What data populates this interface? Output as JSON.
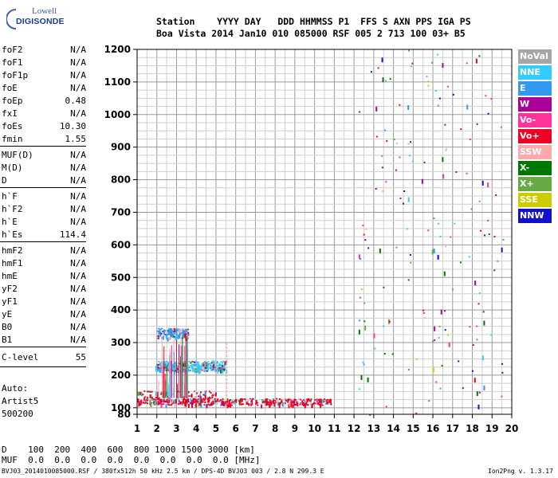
{
  "logo": {
    "line1": "Lowell",
    "line2": "DIGISONDE"
  },
  "header": {
    "row1": "Station    YYYY DAY   DDD HHMMSS P1  FFS S AXN PPS IGA PS",
    "row2": "Boa Vista 2014 Jan10 010 085000 RSF 005 2 713 100 03+ B5"
  },
  "params": {
    "group1": [
      {
        "name": "foF2",
        "value": "N/A"
      },
      {
        "name": "foF1",
        "value": "N/A"
      },
      {
        "name": "foF1p",
        "value": "N/A"
      },
      {
        "name": "foE",
        "value": "N/A"
      },
      {
        "name": "foEp",
        "value": "0.48"
      },
      {
        "name": "fxI",
        "value": "N/A"
      },
      {
        "name": "foEs",
        "value": "10.30"
      },
      {
        "name": "fmin",
        "value": "1.55"
      }
    ],
    "group2": [
      {
        "name": "MUF(D)",
        "value": "N/A"
      },
      {
        "name": "M(D)",
        "value": "N/A"
      },
      {
        "name": "D",
        "value": "N/A"
      }
    ],
    "group3": [
      {
        "name": "h`F",
        "value": "N/A"
      },
      {
        "name": "h`F2",
        "value": "N/A"
      },
      {
        "name": "h`E",
        "value": "N/A"
      },
      {
        "name": "h`Es",
        "value": "114.4"
      }
    ],
    "group4": [
      {
        "name": "hmF2",
        "value": "N/A"
      },
      {
        "name": "hmF1",
        "value": "N/A"
      },
      {
        "name": "hmE",
        "value": "N/A"
      },
      {
        "name": "yF2",
        "value": "N/A"
      },
      {
        "name": "yF1",
        "value": "N/A"
      },
      {
        "name": "yE",
        "value": "N/A"
      },
      {
        "name": "B0",
        "value": "N/A"
      },
      {
        "name": "B1",
        "value": "N/A"
      }
    ],
    "clevel": {
      "name": "C-level",
      "value": "55"
    }
  },
  "auto": {
    "line1": "Auto:",
    "line2": "Artist5",
    "line3": "500200"
  },
  "legend": [
    {
      "label": "NoVal",
      "color": "#a6a6a6"
    },
    {
      "label": "NNE",
      "color": "#33ccff"
    },
    {
      "label": "E",
      "color": "#3399ee"
    },
    {
      "label": "W",
      "color": "#aa0099"
    },
    {
      "label": "Vo-",
      "color": "#ff3399"
    },
    {
      "label": "Vo+",
      "color": "#ee0022"
    },
    {
      "label": "SSW",
      "color": "#ffaaaa"
    },
    {
      "label": "X-",
      "color": "#007700"
    },
    {
      "label": "X+",
      "color": "#66aa44"
    },
    {
      "label": "SSE",
      "color": "#cccc00"
    },
    {
      "label": "NNW",
      "color": "#1111cc"
    }
  ],
  "bottom": {
    "dist_row": "D    100  200  400  600  800 1000 1500 3000 [km]",
    "muf_row": "MUF  0.0  0.0  0.0  0.0  0.0  0.0  0.0  0.0 [MHz]"
  },
  "footer": {
    "left": "BVJ03_2014010085000.RSF / 380fx512h 50 kHz 2.5 km / DPS-4D BVJ03 003 / 2.8 N 299.3 E",
    "right": "Ion2Png v. 1.3.17"
  },
  "chart_data": {
    "type": "scatter",
    "title": "",
    "xlabel": "",
    "ylabel": "",
    "xlim": [
      1,
      20
    ],
    "ylim": [
      80,
      1200
    ],
    "xticks": [
      1,
      2,
      3,
      4,
      5,
      6,
      7,
      8,
      9,
      10,
      11,
      12,
      13,
      14,
      15,
      16,
      17,
      18,
      19,
      20
    ],
    "yticks": [
      80,
      100,
      200,
      300,
      400,
      500,
      600,
      700,
      800,
      900,
      1000,
      1100,
      1200
    ],
    "grid": true,
    "traces": [
      {
        "name": "Es echo trace",
        "x_range": [
          1.0,
          10.8
        ],
        "h_range": [
          110,
          130
        ],
        "color": "#ee0022"
      },
      {
        "name": "Es second hop",
        "x_range": [
          1.9,
          5.5
        ],
        "h_range": [
          215,
          245
        ],
        "color": "#33ccff"
      },
      {
        "name": "Es third hop",
        "x_range": [
          2.0,
          3.6
        ],
        "h_range": [
          315,
          345
        ],
        "color": "#3399ee"
      },
      {
        "name": "scattered noise",
        "x_range": [
          12.2,
          19.6
        ],
        "h_range": [
          80,
          1200
        ],
        "color": "#ff3399"
      }
    ]
  }
}
